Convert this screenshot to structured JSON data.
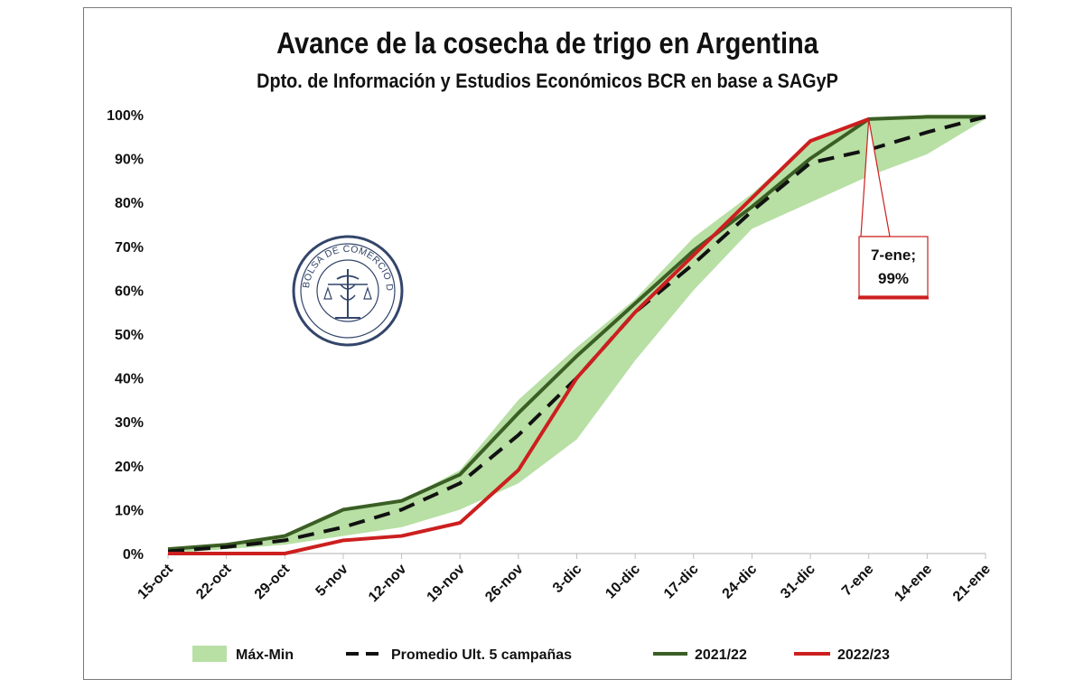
{
  "chart_data": {
    "type": "line",
    "title": "Avance de la cosecha de trigo en Argentina",
    "subtitle": "Dpto. de Información y Estudios Económicos BCR en base a SAGyP",
    "categories": [
      "15-oct",
      "22-oct",
      "29-oct",
      "5-nov",
      "12-nov",
      "19-nov",
      "26-nov",
      "3-dic",
      "10-dic",
      "17-dic",
      "24-dic",
      "31-dic",
      "7-ene",
      "14-ene",
      "21-ene"
    ],
    "y_tick_labels": [
      "0%",
      "10%",
      "20%",
      "30%",
      "40%",
      "50%",
      "60%",
      "70%",
      "80%",
      "90%",
      "100%"
    ],
    "ylim": [
      0,
      100
    ],
    "band": {
      "name": "Máx-Min",
      "color": "#b8dfa4",
      "max": [
        1,
        2,
        4,
        10,
        12,
        19,
        35,
        47,
        58,
        72,
        82,
        94,
        99,
        100,
        100
      ],
      "min": [
        0,
        1,
        2,
        4,
        6,
        10,
        16,
        26,
        44,
        60,
        74,
        80,
        86,
        91,
        99
      ]
    },
    "series": [
      {
        "name": "Promedio Ult. 5 campañas",
        "color": "#111111",
        "style": "dashed",
        "values": [
          0.5,
          1.5,
          3,
          6,
          10,
          16,
          27,
          40,
          55,
          66,
          78,
          89,
          92,
          96,
          99.5
        ]
      },
      {
        "name": "2021/22",
        "color": "#3a5e24",
        "style": "solid",
        "values": [
          1,
          2,
          4,
          10,
          12,
          18,
          32,
          45,
          57,
          69,
          79,
          90,
          99,
          99.5,
          99.5
        ]
      },
      {
        "name": "2022/23",
        "color": "#cc1f1f",
        "style": "solid",
        "values": [
          0,
          0,
          0,
          3,
          4,
          7,
          19,
          40,
          55,
          68,
          81,
          94,
          99,
          null,
          null
        ]
      }
    ],
    "annotation": {
      "line1": "7-ene;",
      "line2": "99%",
      "series": "2022/23",
      "category": "7-ene"
    },
    "legend_position": "bottom",
    "grid": false,
    "watermark": {
      "type": "logo",
      "text": "BOLSA DE COMERCIO DE ROSARIO"
    }
  }
}
